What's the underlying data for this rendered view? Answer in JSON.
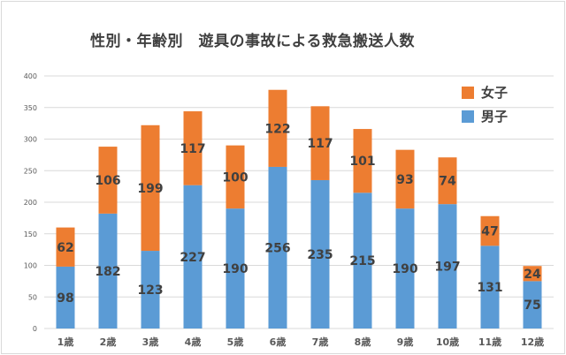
{
  "colors": {
    "female": "#ED7D31",
    "male": "#5B9BD5",
    "grid": "#d9d9d9",
    "text": "#404040",
    "axis_text": "#595959"
  },
  "chart_data": {
    "type": "bar",
    "stacked": true,
    "title": "性別・年齢別　遊具の事故による救急搬送人数",
    "xlabel": "",
    "ylabel": "",
    "ylim": [
      0,
      400
    ],
    "yticks": [
      "0",
      "50",
      "100",
      "150",
      "200",
      "250",
      "300",
      "350",
      "400"
    ],
    "grid": true,
    "legend_position": "top-right",
    "categories": [
      "1歳",
      "2歳",
      "3歳",
      "4歳",
      "5歳",
      "6歳",
      "7歳",
      "8歳",
      "9歳",
      "10歳",
      "11歳",
      "12歳"
    ],
    "series": [
      {
        "name": "男子",
        "color": "#5B9BD5",
        "values": [
          98,
          182,
          123,
          227,
          190,
          256,
          235,
          215,
          190,
          197,
          131,
          75
        ]
      },
      {
        "name": "女子",
        "color": "#ED7D31",
        "values": [
          62,
          106,
          199,
          117,
          100,
          122,
          117,
          101,
          93,
          74,
          47,
          24
        ]
      }
    ]
  }
}
